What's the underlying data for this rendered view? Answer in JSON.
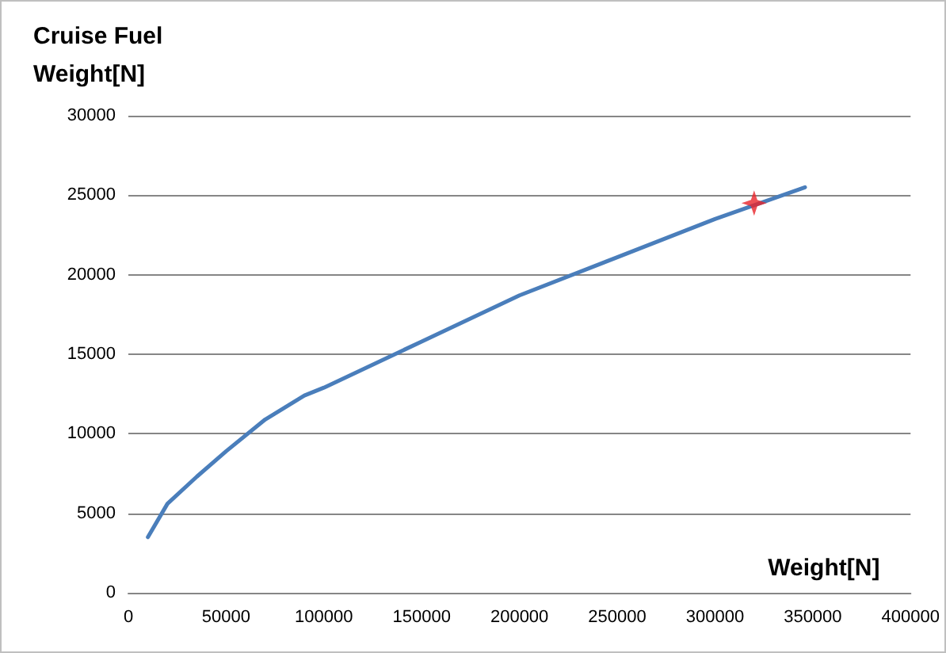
{
  "chart_data": {
    "type": "line",
    "xlabel": "Weight[N]",
    "ylabel": "Cruise Fuel Weight[N]",
    "xlim": [
      0,
      400000
    ],
    "xticks": [
      0,
      50000,
      100000,
      150000,
      200000,
      250000,
      300000,
      350000,
      400000
    ],
    "ylim": [
      0,
      30000
    ],
    "yticks": [
      0,
      5000,
      10000,
      15000,
      20000,
      25000,
      30000
    ],
    "grid": "y",
    "line_style": "solid",
    "series": [
      {
        "color": "#4a7ebb",
        "marker": "none",
        "x": [
          10000,
          20000,
          35000,
          50000,
          70000,
          90000,
          100000,
          150000,
          200000,
          250000,
          300000,
          346000
        ],
        "values": [
          3500,
          5600,
          7300,
          8900,
          10900,
          12400,
          12900,
          15800,
          18700,
          21100,
          23500,
          25500
        ]
      },
      {
        "type": "scatter",
        "color": "#e8242a",
        "marker": "star",
        "x": [
          320000
        ],
        "values": [
          24500
        ]
      }
    ]
  }
}
